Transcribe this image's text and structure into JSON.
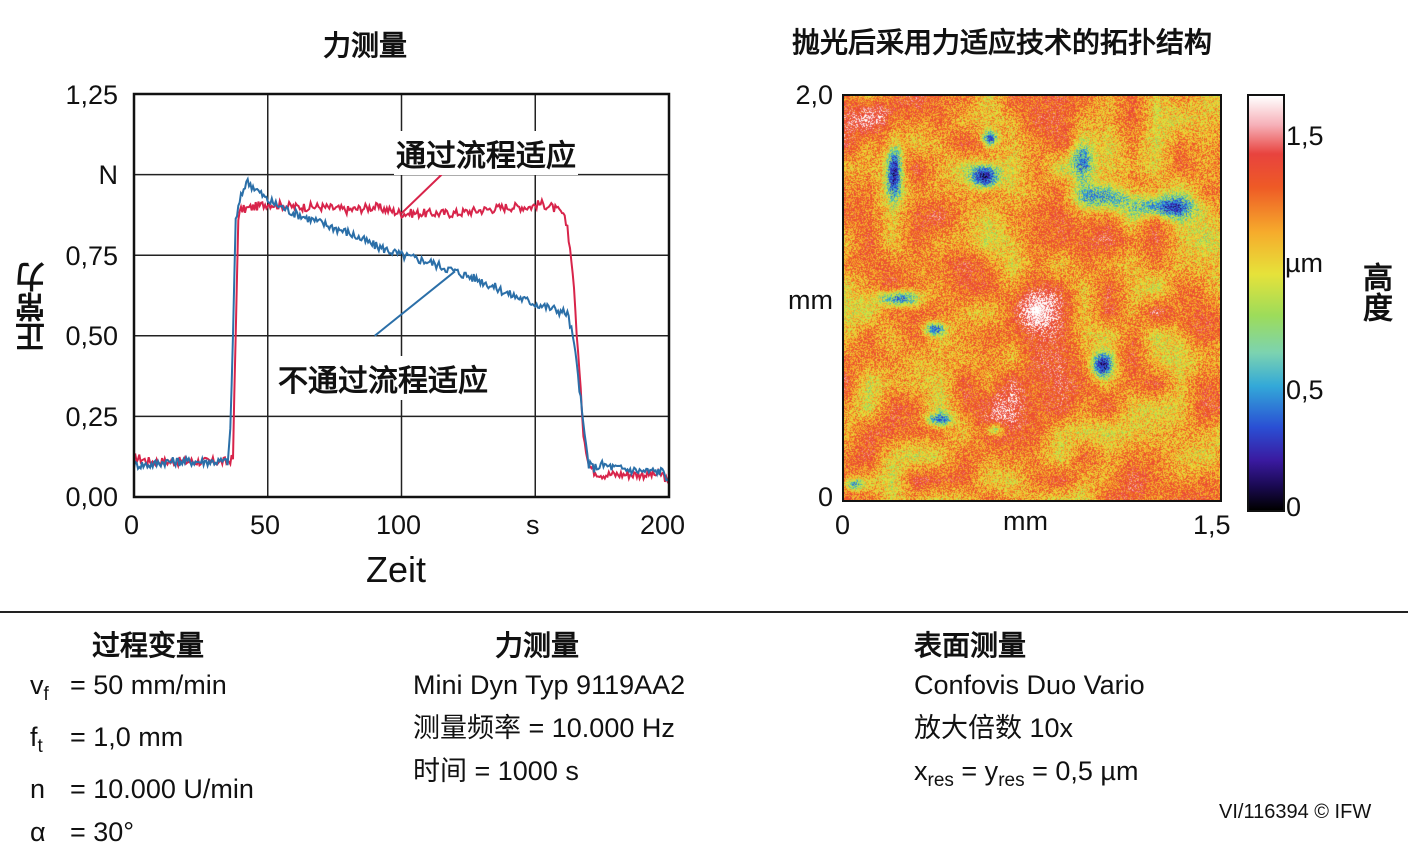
{
  "chart_data": [
    {
      "type": "line",
      "title": "力测量",
      "xlabel": "Zeit",
      "ylabel": "正常力",
      "xlim": [
        0,
        200
      ],
      "ylim": [
        0,
        1.25
      ],
      "x_tick_labels": [
        "0",
        "50",
        "100",
        "s",
        "200"
      ],
      "y_tick_labels": [
        "0,00",
        "0,25",
        "0,50",
        "0,75",
        "N",
        "1,25"
      ],
      "grid": true,
      "annotations": [
        "通过流程适应",
        "不通过流程适应"
      ],
      "series": [
        {
          "name": "通过流程适应",
          "color": "#d8244a",
          "x": [
            0,
            2,
            6,
            12,
            18,
            24,
            30,
            35,
            37,
            38,
            39,
            40,
            45,
            50,
            60,
            70,
            80,
            90,
            100,
            110,
            120,
            130,
            140,
            148,
            152,
            156,
            160,
            162,
            164,
            166,
            168,
            170,
            172,
            175,
            180,
            190,
            198,
            200
          ],
          "y": [
            0.12,
            0.12,
            0.11,
            0.11,
            0.11,
            0.11,
            0.11,
            0.11,
            0.12,
            0.5,
            0.87,
            0.89,
            0.9,
            0.91,
            0.9,
            0.9,
            0.89,
            0.9,
            0.88,
            0.88,
            0.88,
            0.89,
            0.9,
            0.9,
            0.91,
            0.9,
            0.88,
            0.84,
            0.7,
            0.45,
            0.2,
            0.1,
            0.08,
            0.07,
            0.07,
            0.07,
            0.07,
            0.03
          ]
        },
        {
          "name": "不通过流程适应",
          "color": "#2b6fa8",
          "x": [
            0,
            2,
            6,
            12,
            18,
            24,
            30,
            35,
            36,
            37,
            38,
            40,
            42,
            45,
            50,
            60,
            70,
            80,
            90,
            100,
            110,
            120,
            130,
            140,
            150,
            158,
            162,
            164,
            166,
            168,
            170,
            172,
            175,
            180,
            190,
            198,
            200
          ],
          "y": [
            0.1,
            0.1,
            0.1,
            0.11,
            0.11,
            0.11,
            0.11,
            0.11,
            0.2,
            0.5,
            0.86,
            0.93,
            0.98,
            0.96,
            0.92,
            0.88,
            0.85,
            0.82,
            0.78,
            0.75,
            0.73,
            0.7,
            0.67,
            0.63,
            0.6,
            0.58,
            0.57,
            0.5,
            0.38,
            0.22,
            0.1,
            0.09,
            0.1,
            0.09,
            0.08,
            0.08,
            0.05
          ]
        }
      ]
    },
    {
      "type": "heatmap",
      "title": "抛光后采用力适应技术的拓扑结构",
      "xlabel": "mm",
      "ylabel": "mm",
      "xlim": [
        0,
        1.5
      ],
      "ylim": [
        0,
        2.0
      ],
      "x_tick_labels": [
        "0",
        "mm",
        "1,5"
      ],
      "y_tick_labels": [
        "0",
        "mm",
        "2,0"
      ],
      "colorbar_label": "高度",
      "colorbar_tick_labels": [
        "0",
        "0,5",
        "µm",
        "1,5"
      ],
      "colorbar_range": [
        0,
        1.6
      ],
      "colormap": [
        "#000000",
        "#3a1aa0",
        "#2a4fd4",
        "#33a9d8",
        "#9ddc5a",
        "#e6e23a",
        "#f6ac2c",
        "#ee5a26",
        "#e8433e",
        "#ffffff"
      ],
      "base_level": 1.1,
      "low_spots": [
        {
          "x": 0.2,
          "y": 1.64,
          "rx": 0.03,
          "ry": 0.12,
          "depth": 0.85
        },
        {
          "x": 0.58,
          "y": 1.79,
          "rx": 0.03,
          "ry": 0.04,
          "depth": 0.8
        },
        {
          "x": 0.56,
          "y": 1.6,
          "rx": 0.05,
          "ry": 0.05,
          "depth": 0.85
        },
        {
          "x": 0.95,
          "y": 1.7,
          "rx": 0.04,
          "ry": 0.1,
          "depth": 0.6
        },
        {
          "x": 1.05,
          "y": 1.5,
          "rx": 0.14,
          "ry": 0.06,
          "depth": 0.55
        },
        {
          "x": 1.28,
          "y": 1.45,
          "rx": 0.1,
          "ry": 0.05,
          "depth": 0.75
        },
        {
          "x": 0.22,
          "y": 1.0,
          "rx": 0.08,
          "ry": 0.04,
          "depth": 0.8
        },
        {
          "x": 0.36,
          "y": 0.85,
          "rx": 0.04,
          "ry": 0.03,
          "depth": 0.7
        },
        {
          "x": 1.03,
          "y": 0.67,
          "rx": 0.04,
          "ry": 0.06,
          "depth": 0.9
        },
        {
          "x": 0.38,
          "y": 0.4,
          "rx": 0.05,
          "ry": 0.03,
          "depth": 0.6
        },
        {
          "x": 0.6,
          "y": 0.35,
          "rx": 0.04,
          "ry": 0.03,
          "depth": 0.55
        },
        {
          "x": 0.04,
          "y": 0.08,
          "rx": 0.04,
          "ry": 0.03,
          "depth": 0.6
        }
      ],
      "high_spots": [
        {
          "x": 0.8,
          "y": 0.95,
          "rx": 0.12,
          "ry": 0.12,
          "height": 0.45
        },
        {
          "x": 0.15,
          "y": 1.9,
          "rx": 0.1,
          "ry": 0.07,
          "height": 0.35
        },
        {
          "x": 0.6,
          "y": 0.45,
          "rx": 0.08,
          "ry": 0.1,
          "height": 0.35
        },
        {
          "x": 1.4,
          "y": 0.9,
          "rx": 0.1,
          "ry": 0.12,
          "height": 0.3
        }
      ]
    }
  ],
  "info": {
    "process_title": "过程变量",
    "process_lines": [
      {
        "sym": "v",
        "sub": "f",
        "val": "= 50 mm/min"
      },
      {
        "sym": "f",
        "sub": "t",
        "val": "= 1,0 mm"
      },
      {
        "sym": "n",
        "sub": "",
        "val": "= 10.000 U/min"
      },
      {
        "sym": "α",
        "sub": "",
        "val": "= 30°"
      }
    ],
    "force_title": "力测量",
    "force_lines": [
      "Mini Dyn Typ 9119AA2",
      "测量频率 = 10.000 Hz",
      "时间 = 1000 s"
    ],
    "surface_title": "表面测量",
    "surface_lines": [
      "Confovis Duo Vario",
      "放大倍数 10x"
    ],
    "res_parts": [
      "x",
      "res",
      " = y",
      "res",
      " = 0,5 µm"
    ],
    "credit": "VI/116394 © IFW"
  }
}
